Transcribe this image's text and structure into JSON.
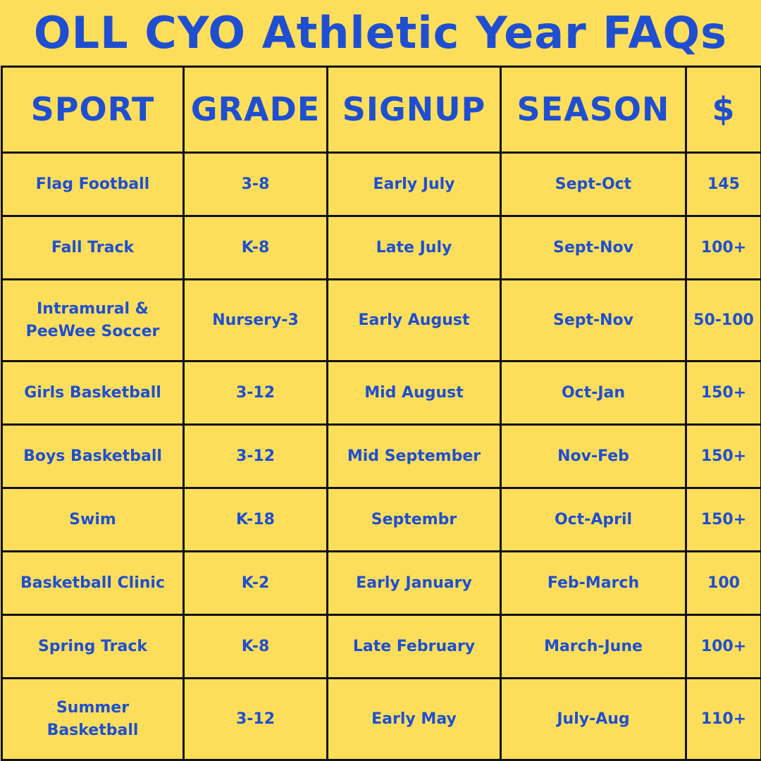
{
  "title": "OLL CYO Athletic Year FAQs",
  "colors": {
    "background": "#FDDE5B",
    "text": "#1F4FD0",
    "border": "#111111"
  },
  "table": {
    "headers": {
      "sport": "SPORT",
      "grade": "GRADE",
      "signup": "SIGNUP",
      "season": "SEASON",
      "price": "$"
    },
    "rows": [
      {
        "sport": "Flag Football",
        "grade": "3-8",
        "signup": "Early July",
        "season": "Sept-Oct",
        "price": "145"
      },
      {
        "sport": "Fall Track",
        "grade": "K-8",
        "signup": "Late July",
        "season": "Sept-Nov",
        "price": "100+"
      },
      {
        "sport": "Intramural & PeeWee Soccer",
        "grade": "Nursery-3",
        "signup": "Early August",
        "season": "Sept-Nov",
        "price": "50-100"
      },
      {
        "sport": "Girls Basketball",
        "grade": "3-12",
        "signup": "Mid August",
        "season": "Oct-Jan",
        "price": "150+"
      },
      {
        "sport": "Boys Basketball",
        "grade": "3-12",
        "signup": "Mid September",
        "season": "Nov-Feb",
        "price": "150+"
      },
      {
        "sport": "Swim",
        "grade": "K-18",
        "signup": "Septembr",
        "season": "Oct-April",
        "price": "150+"
      },
      {
        "sport": "Basketball Clinic",
        "grade": "K-2",
        "signup": "Early January",
        "season": "Feb-March",
        "price": "100"
      },
      {
        "sport": "Spring Track",
        "grade": "K-8",
        "signup": "Late February",
        "season": "March-June",
        "price": "100+"
      },
      {
        "sport": "Summer Basketball",
        "grade": "3-12",
        "signup": "Early May",
        "season": "July-Aug",
        "price": "110+"
      }
    ]
  }
}
